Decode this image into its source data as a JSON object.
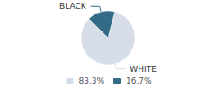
{
  "chart_data": {
    "type": "pie",
    "categories": [
      "WHITE",
      "BLACK"
    ],
    "values": [
      83.3,
      16.7
    ],
    "value_labels": [
      "83.3%",
      "16.7%"
    ],
    "colors": [
      "#d6dde8",
      "#336b87"
    ],
    "legend": "bottom"
  }
}
